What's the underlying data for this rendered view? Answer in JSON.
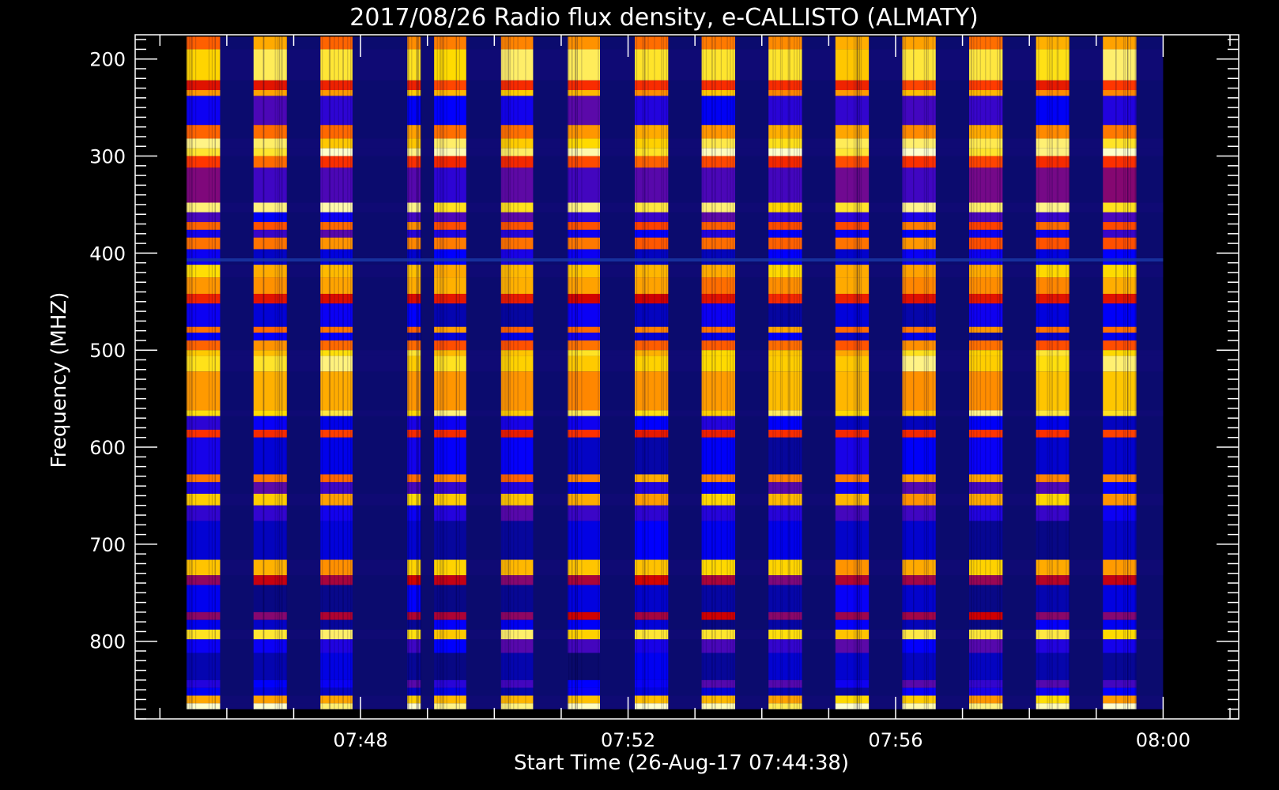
{
  "chart_data": {
    "type": "heatmap",
    "title": "2017/08/26  Radio flux density, e-CALLISTO (ALMATY)",
    "xlabel": "Start Time (26-Aug-17 07:44:38)",
    "ylabel": "Frequency (MHZ)",
    "x_ticks": [
      "07:48",
      "07:52",
      "07:56",
      "08:00"
    ],
    "x_tick_minutes": [
      3.37,
      7.37,
      11.37,
      15.37
    ],
    "xlim_minutes": [
      0,
      16.5
    ],
    "y_ticks": [
      200,
      300,
      400,
      500,
      600,
      700,
      800
    ],
    "ylim": [
      175,
      880
    ],
    "y_reversed": true,
    "data_extent_minutes": [
      0.77,
      15.37
    ],
    "data_extent_mhz": [
      177,
      870
    ],
    "grid": false,
    "colormap": [
      "#000020",
      "#0a0a6a",
      "#0000ff",
      "#6a0a9a",
      "#d00000",
      "#ff3300",
      "#ff8800",
      "#ffdd00",
      "#ffffcc"
    ],
    "colors": {
      "background": "#000000",
      "axes": "#ffffff",
      "quiet": "#0b0b6e"
    },
    "bright_columns_minutes": [
      [
        0.77,
        1.27
      ],
      [
        1.77,
        2.27
      ],
      [
        2.77,
        3.25
      ],
      [
        4.07,
        4.27
      ],
      [
        4.47,
        4.95
      ],
      [
        5.47,
        5.95
      ],
      [
        6.47,
        6.95
      ],
      [
        7.47,
        7.97
      ],
      [
        8.47,
        8.97
      ],
      [
        9.47,
        9.97
      ],
      [
        10.47,
        10.97
      ],
      [
        11.47,
        11.97
      ],
      [
        12.47,
        12.97
      ],
      [
        13.47,
        13.97
      ],
      [
        14.47,
        14.97
      ]
    ],
    "emission_bands_mhz": [
      {
        "f": [
          177,
          190
        ],
        "level": 0.75
      },
      {
        "f": [
          190,
          222
        ],
        "level": 0.9
      },
      {
        "f": [
          222,
          232
        ],
        "level": 0.6
      },
      {
        "f": [
          232,
          238
        ],
        "level": 0.8
      },
      {
        "f": [
          238,
          268
        ],
        "level": 0.3
      },
      {
        "f": [
          268,
          282
        ],
        "level": 0.75
      },
      {
        "f": [
          282,
          292
        ],
        "level": 0.9
      },
      {
        "f": [
          292,
          300
        ],
        "level": 0.95
      },
      {
        "f": [
          300,
          312
        ],
        "level": 0.65
      },
      {
        "f": [
          312,
          348
        ],
        "level": 0.35
      },
      {
        "f": [
          348,
          358
        ],
        "level": 0.92
      },
      {
        "f": [
          358,
          368
        ],
        "level": 0.3
      },
      {
        "f": [
          368,
          376
        ],
        "level": 0.7
      },
      {
        "f": [
          376,
          384
        ],
        "level": 0.3
      },
      {
        "f": [
          384,
          396
        ],
        "level": 0.72
      },
      {
        "f": [
          396,
          412
        ],
        "level": 0.25
      },
      {
        "f": [
          412,
          425
        ],
        "level": 0.82
      },
      {
        "f": [
          425,
          442
        ],
        "level": 0.75
      },
      {
        "f": [
          442,
          452
        ],
        "level": 0.55
      },
      {
        "f": [
          452,
          476
        ],
        "level": 0.22
      },
      {
        "f": [
          476,
          482
        ],
        "level": 0.75
      },
      {
        "f": [
          482,
          490
        ],
        "level": 0.22
      },
      {
        "f": [
          490,
          500
        ],
        "level": 0.72
      },
      {
        "f": [
          500,
          506
        ],
        "level": 0.85
      },
      {
        "f": [
          506,
          522
        ],
        "level": 0.9
      },
      {
        "f": [
          522,
          562
        ],
        "level": 0.8
      },
      {
        "f": [
          562,
          568
        ],
        "level": 0.9
      },
      {
        "f": [
          568,
          582
        ],
        "level": 0.25
      },
      {
        "f": [
          582,
          590
        ],
        "level": 0.6
      },
      {
        "f": [
          590,
          628
        ],
        "level": 0.22
      },
      {
        "f": [
          628,
          636
        ],
        "level": 0.75
      },
      {
        "f": [
          636,
          648
        ],
        "level": 0.3
      },
      {
        "f": [
          648,
          660
        ],
        "level": 0.82
      },
      {
        "f": [
          660,
          676
        ],
        "level": 0.3
      },
      {
        "f": [
          676,
          716
        ],
        "level": 0.2
      },
      {
        "f": [
          716,
          732
        ],
        "level": 0.82
      },
      {
        "f": [
          732,
          742
        ],
        "level": 0.45
      },
      {
        "f": [
          742,
          770
        ],
        "level": 0.2
      },
      {
        "f": [
          770,
          778
        ],
        "level": 0.45
      },
      {
        "f": [
          778,
          788
        ],
        "level": 0.2
      },
      {
        "f": [
          788,
          798
        ],
        "level": 0.88
      },
      {
        "f": [
          798,
          812
        ],
        "level": 0.3
      },
      {
        "f": [
          812,
          840
        ],
        "level": 0.18
      },
      {
        "f": [
          840,
          848
        ],
        "level": 0.3
      },
      {
        "f": [
          848,
          856
        ],
        "level": 0.22
      },
      {
        "f": [
          856,
          864
        ],
        "level": 0.82
      },
      {
        "f": [
          864,
          870
        ],
        "level": 0.98
      }
    ],
    "interference_line_mhz": 407
  }
}
